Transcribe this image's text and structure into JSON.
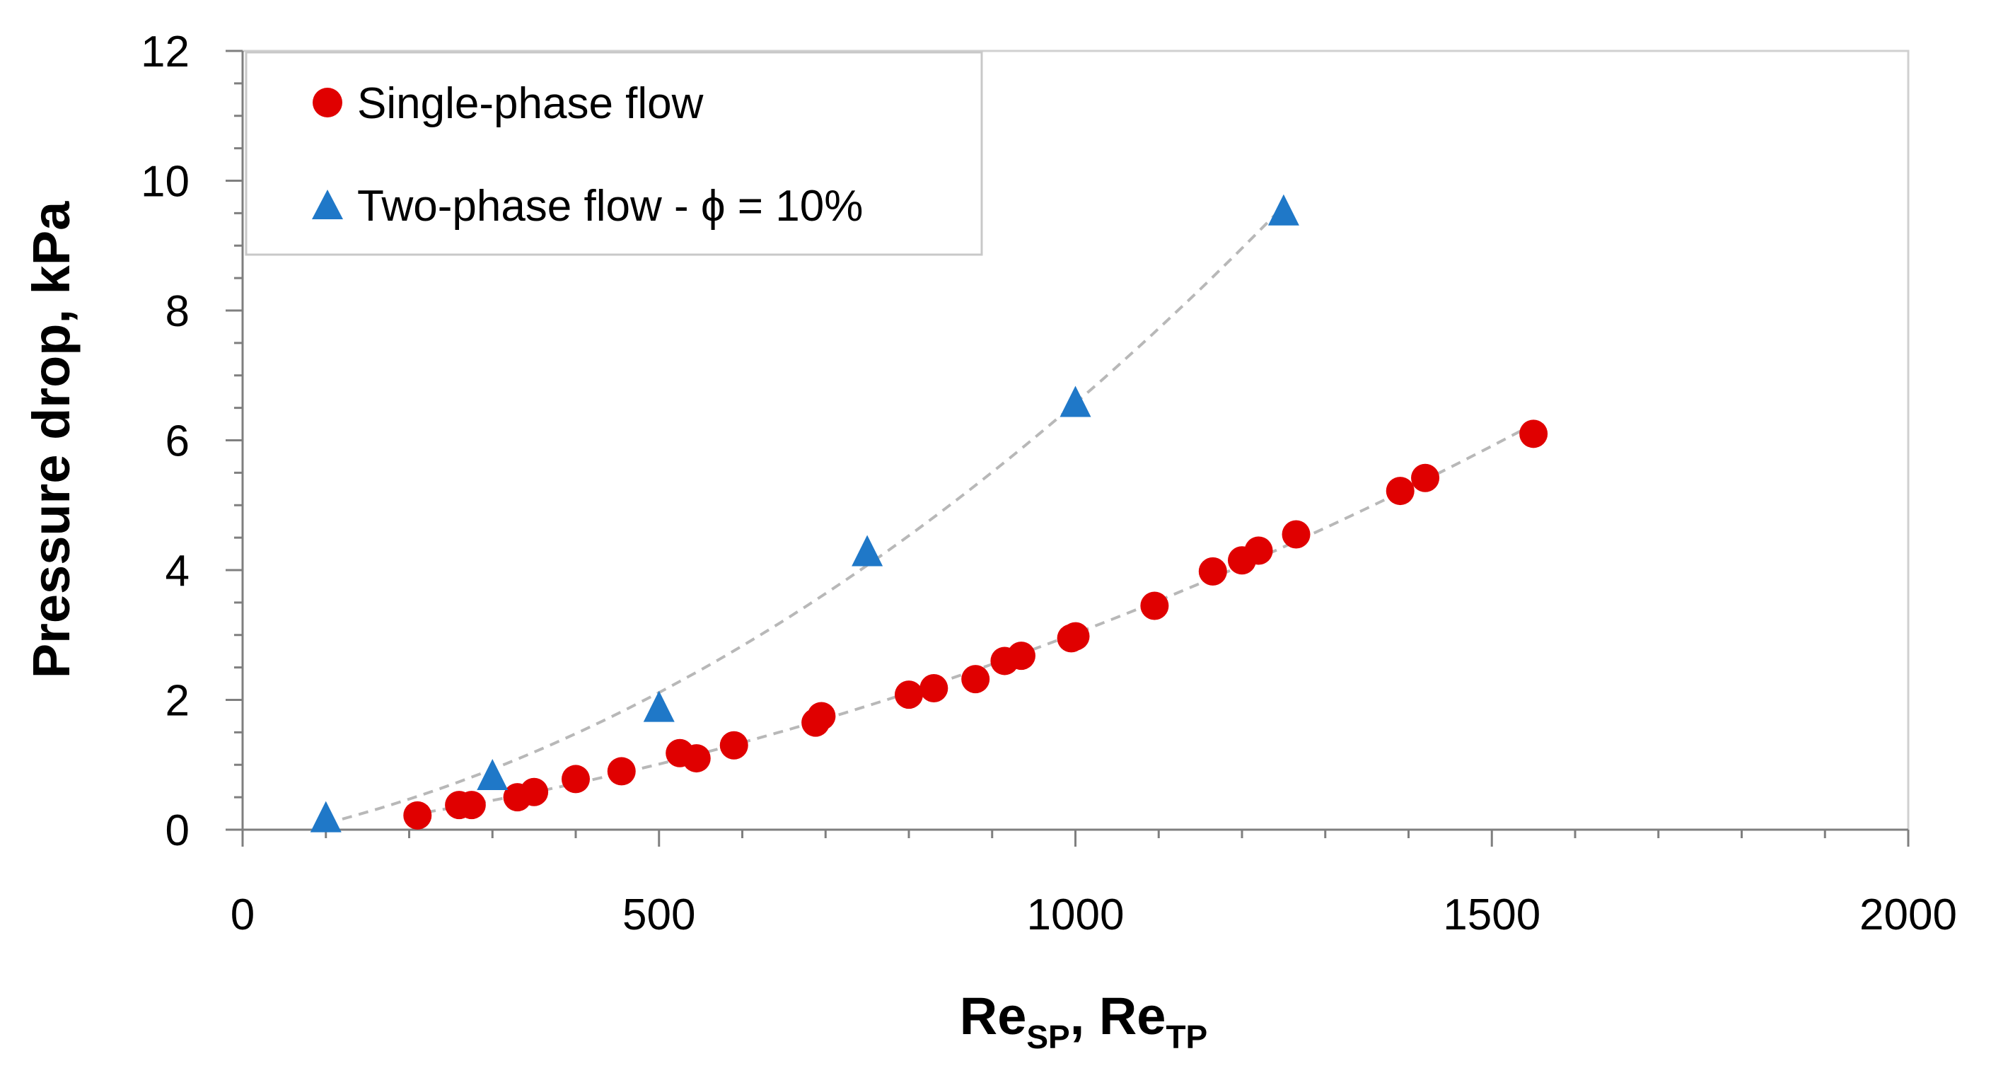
{
  "chart_data": {
    "type": "scatter",
    "title": "",
    "xlabel": {
      "parts": [
        {
          "text": "Re",
          "sub": false
        },
        {
          "text": "SP",
          "sub": true
        },
        {
          "text": ", Re",
          "sub": false
        },
        {
          "text": "TP",
          "sub": true
        }
      ]
    },
    "ylabel": "Pressure drop, kPa",
    "xlim": [
      0,
      2000
    ],
    "ylim": [
      0,
      12
    ],
    "xticks": [
      0,
      500,
      1000,
      1500,
      2000
    ],
    "yticks": [
      0,
      2,
      4,
      6,
      8,
      10,
      12
    ],
    "x_minor_step": 100,
    "y_minor_step": 0.5,
    "grid": false,
    "legend_position": "top-left",
    "series": [
      {
        "name": "Single-phase flow",
        "marker": "circle",
        "color": "#e00000",
        "trend": "polynomial",
        "trend_color": "#b8b8b8",
        "trend_range": [
          200,
          1550
        ],
        "x": [
          210,
          260,
          275,
          330,
          350,
          400,
          455,
          525,
          545,
          590,
          688,
          695,
          800,
          830,
          880,
          915,
          935,
          995,
          1000,
          1095,
          1165,
          1200,
          1220,
          1265,
          1390,
          1420,
          1550
        ],
        "y": [
          0.22,
          0.38,
          0.38,
          0.5,
          0.58,
          0.78,
          0.9,
          1.18,
          1.1,
          1.3,
          1.65,
          1.75,
          2.08,
          2.18,
          2.32,
          2.6,
          2.68,
          2.95,
          2.98,
          3.45,
          3.98,
          4.15,
          4.3,
          4.55,
          5.22,
          5.42,
          6.1
        ]
      },
      {
        "name": "Two-phase flow - ϕ = 10%",
        "marker": "triangle",
        "color": "#1f78c8",
        "trend": "polynomial",
        "trend_color": "#b8b8b8",
        "trend_range": [
          100,
          1250
        ],
        "x": [
          100,
          300,
          500,
          750,
          1000,
          1250
        ],
        "y": [
          0.2,
          0.85,
          1.9,
          4.3,
          6.6,
          9.55
        ]
      }
    ]
  }
}
